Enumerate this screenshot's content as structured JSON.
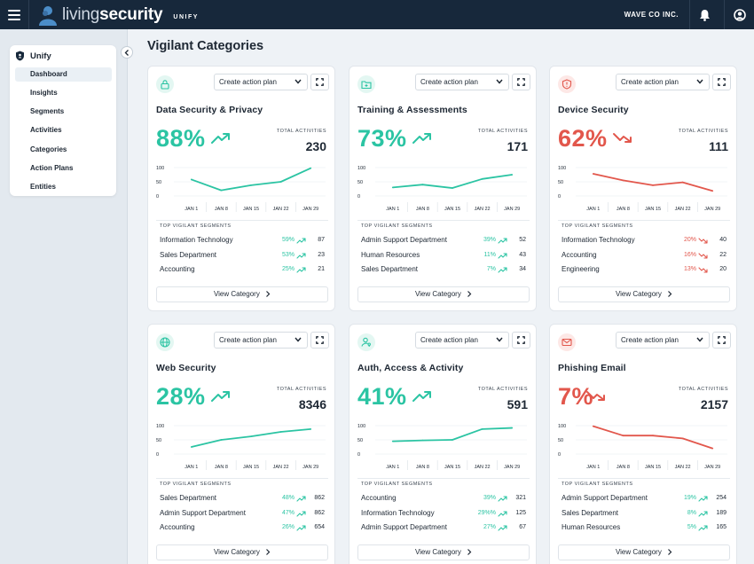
{
  "header": {
    "logo_light": "living",
    "logo_bold": "security",
    "product": "UNIFY",
    "company": "WAVE CO INC."
  },
  "sidebar": {
    "title": "Unify",
    "items": [
      "Dashboard",
      "Insights",
      "Segments",
      "Activities",
      "Categories",
      "Action Plans",
      "Entities"
    ]
  },
  "page": {
    "title": "Vigilant Categories",
    "plan_label": "Create action plan",
    "total_label": "TOTAL ACTIVITIES",
    "segments_label": "TOP VIGILANT SEGMENTS",
    "view_label": "View Category"
  },
  "colors": {
    "teal": "#2bc4a3",
    "red": "#e2574c",
    "navy": "#17283b"
  },
  "chart_axis": {
    "y_ticks": [
      "100",
      "50",
      "0"
    ],
    "ylim": [
      0,
      100
    ],
    "x_ticks": [
      "JAN 1",
      "JAN 8",
      "JAN 15",
      "JAN 22",
      "JAN 29"
    ]
  },
  "cards": [
    {
      "title": "Data Security & Privacy",
      "icon": "lock-icon",
      "status": "up",
      "percent": "88%",
      "total": "230",
      "chart_data": {
        "type": "line",
        "x": [
          "JAN 1",
          "JAN 8",
          "JAN 15",
          "JAN 22",
          "JAN 29"
        ],
        "values": [
          58,
          20,
          38,
          50,
          98
        ]
      },
      "segments": [
        {
          "name": "Information Technology",
          "pct": "59%",
          "dir": "up",
          "count": "87"
        },
        {
          "name": "Sales Department",
          "pct": "53%",
          "dir": "up",
          "count": "23"
        },
        {
          "name": "Accounting",
          "pct": "25%",
          "dir": "up",
          "count": "21"
        }
      ]
    },
    {
      "title": "Training & Assessments",
      "icon": "folder-plus-icon",
      "status": "up",
      "percent": "73%",
      "total": "171",
      "chart_data": {
        "type": "line",
        "x": [
          "JAN 1",
          "JAN 8",
          "JAN 15",
          "JAN 22",
          "JAN 29"
        ],
        "values": [
          30,
          40,
          28,
          60,
          75
        ]
      },
      "segments": [
        {
          "name": "Admin Support Department",
          "pct": "39%",
          "dir": "up",
          "count": "52"
        },
        {
          "name": "Human Resources",
          "pct": "11%",
          "dir": "up",
          "count": "43"
        },
        {
          "name": "Sales Department",
          "pct": "7%",
          "dir": "up",
          "count": "34"
        }
      ]
    },
    {
      "title": "Device Security",
      "icon": "shield-alert-icon",
      "status": "down",
      "percent": "62%",
      "total": "111",
      "chart_data": {
        "type": "line",
        "x": [
          "JAN 1",
          "JAN 8",
          "JAN 15",
          "JAN 22",
          "JAN 29"
        ],
        "values": [
          78,
          55,
          38,
          48,
          18
        ]
      },
      "segments": [
        {
          "name": "Information Technology",
          "pct": "20%",
          "dir": "down",
          "count": "40"
        },
        {
          "name": "Accounting",
          "pct": "16%",
          "dir": "down",
          "count": "22"
        },
        {
          "name": "Engineering",
          "pct": "13%",
          "dir": "down",
          "count": "20"
        }
      ]
    },
    {
      "title": "Web Security",
      "icon": "globe-icon",
      "status": "up",
      "percent": "28%",
      "total": "8346",
      "chart_data": {
        "type": "line",
        "x": [
          "JAN 1",
          "JAN 8",
          "JAN 15",
          "JAN 22",
          "JAN 29"
        ],
        "values": [
          25,
          50,
          62,
          78,
          88
        ]
      },
      "segments": [
        {
          "name": "Sales Department",
          "pct": "48%",
          "dir": "up",
          "count": "862"
        },
        {
          "name": "Admin Support Department",
          "pct": "47%",
          "dir": "up",
          "count": "862"
        },
        {
          "name": "Accounting",
          "pct": "26%",
          "dir": "up",
          "count": "654"
        }
      ]
    },
    {
      "title": "Auth, Access & Activity",
      "icon": "user-key-icon",
      "status": "up",
      "percent": "41%",
      "total": "591",
      "chart_data": {
        "type": "line",
        "x": [
          "JAN 1",
          "JAN 8",
          "JAN 15",
          "JAN 22",
          "JAN 29"
        ],
        "values": [
          45,
          48,
          50,
          88,
          92
        ]
      },
      "segments": [
        {
          "name": "Accounting",
          "pct": "39%",
          "dir": "up",
          "count": "321"
        },
        {
          "name": "Information Technology",
          "pct": "29%%",
          "dir": "up",
          "count": "125"
        },
        {
          "name": "Admin Support Department",
          "pct": "27%",
          "dir": "up",
          "count": "67"
        }
      ]
    },
    {
      "title": "Phishing Email",
      "icon": "mail-icon",
      "status": "down",
      "percent": "7%",
      "total": "2157",
      "chart_data": {
        "type": "line",
        "x": [
          "JAN 1",
          "JAN 8",
          "JAN 15",
          "JAN 22",
          "JAN 29"
        ],
        "values": [
          98,
          65,
          65,
          55,
          20
        ]
      },
      "segments": [
        {
          "name": "Admin Support Department",
          "pct": "19%",
          "dir": "up",
          "count": "254"
        },
        {
          "name": "Sales Department",
          "pct": "8%",
          "dir": "up",
          "count": "189"
        },
        {
          "name": "Human Resources",
          "pct": "5%",
          "dir": "up",
          "count": "165"
        }
      ]
    }
  ]
}
